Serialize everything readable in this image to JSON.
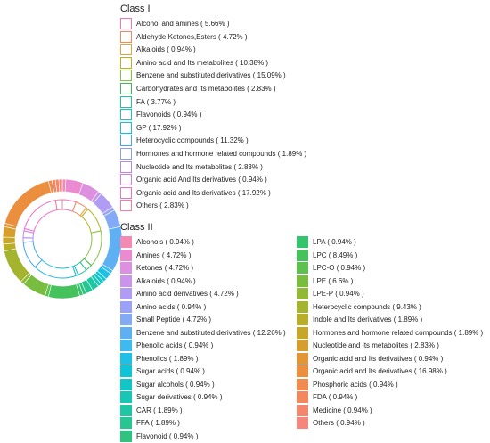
{
  "chart_data": {
    "type": "donut",
    "inner_ring": {
      "legend_title": "Class I",
      "legend_style": "outline",
      "categories": [
        {
          "label": "Alcohol and amines ( 5.66% )",
          "value": 5.66,
          "color": "#f472b6"
        },
        {
          "label": "Aldehyde,Ketones,Esters ( 4.72% )",
          "value": 4.72,
          "color": "#f08a5d"
        },
        {
          "label": "Alkaloids ( 0.94% )",
          "value": 0.94,
          "color": "#e8a23a"
        },
        {
          "label": "Amino acid and Its metabolites ( 10.38% )",
          "value": 10.38,
          "color": "#b7b31e"
        },
        {
          "label": "Benzene and substituted derivatives ( 15.09% )",
          "value": 15.09,
          "color": "#84c341"
        },
        {
          "label": "Carbohydrates and Its metabolites ( 2.83% )",
          "value": 2.83,
          "color": "#3cba5a"
        },
        {
          "label": "FA ( 3.77% )",
          "value": 3.77,
          "color": "#22c29a"
        },
        {
          "label": "Flavonoids ( 0.94% )",
          "value": 0.94,
          "color": "#1fc1c1"
        },
        {
          "label": "GP ( 17.92% )",
          "value": 17.92,
          "color": "#22b8d8"
        },
        {
          "label": "Heterocyclic compounds ( 11.32% )",
          "value": 11.32,
          "color": "#3fa8f0"
        },
        {
          "label": "Hormones and hormone related compounds ( 1.89% )",
          "value": 1.89,
          "color": "#8d9cf5"
        },
        {
          "label": "Nucleotide and Its metabolites ( 2.83% )",
          "value": 2.83,
          "color": "#b488f0"
        },
        {
          "label": "Organic acid And Its derivatives ( 0.94% )",
          "value": 0.94,
          "color": "#db7be6"
        },
        {
          "label": "Organic acid and Its derivatives ( 17.92% )",
          "value": 17.92,
          "color": "#f070c8"
        },
        {
          "label": "Others ( 2.83% )",
          "value": 2.83,
          "color": "#f77ca0"
        }
      ]
    },
    "outer_ring": {
      "legend_title": "Class II",
      "legend_style": "filled",
      "categories": [
        {
          "label": "Alcohols ( 0.94% )",
          "value": 0.94,
          "color": "#f38ab4"
        },
        {
          "label": "Amines ( 4.72% )",
          "value": 4.72,
          "color": "#eb8ad0"
        },
        {
          "label": "Ketones ( 4.72% )",
          "value": 4.72,
          "color": "#dd8fe0"
        },
        {
          "label": "Alkaloids ( 0.94% )",
          "value": 0.94,
          "color": "#c994ea"
        },
        {
          "label": "Amino acid derivatives ( 4.72% )",
          "value": 4.72,
          "color": "#b09cf2"
        },
        {
          "label": "Amino acids ( 0.94% )",
          "value": 0.94,
          "color": "#99a2f5"
        },
        {
          "label": "Small Peptide ( 4.72% )",
          "value": 4.72,
          "color": "#84a9f5"
        },
        {
          "label": "Benzene and substituted derivatives ( 12.26% )",
          "value": 12.26,
          "color": "#5fb0f2"
        },
        {
          "label": "Phenolic acids ( 0.94% )",
          "value": 0.94,
          "color": "#3dbaf0"
        },
        {
          "label": "Phenolics ( 1.89% )",
          "value": 1.89,
          "color": "#1fc0e6"
        },
        {
          "label": "Sugar acids ( 0.94% )",
          "value": 0.94,
          "color": "#10c4d8"
        },
        {
          "label": "Sugar alcohols ( 0.94% )",
          "value": 0.94,
          "color": "#12c6c8"
        },
        {
          "label": "Sugar derivatives ( 0.94% )",
          "value": 0.94,
          "color": "#18c6b6"
        },
        {
          "label": "CAR ( 1.89% )",
          "value": 1.89,
          "color": "#1ec6a4"
        },
        {
          "label": "FFA ( 1.89% )",
          "value": 1.89,
          "color": "#26c592"
        },
        {
          "label": "Flavonoid ( 0.94% )",
          "value": 0.94,
          "color": "#2ec480"
        },
        {
          "label": "LPA ( 0.94% )",
          "value": 0.94,
          "color": "#34c46e"
        },
        {
          "label": "LPC ( 8.49% )",
          "value": 8.49,
          "color": "#45c25c"
        },
        {
          "label": "LPC-O ( 0.94% )",
          "value": 0.94,
          "color": "#5ec04e"
        },
        {
          "label": "LPE ( 6.6% )",
          "value": 6.6,
          "color": "#78bd40"
        },
        {
          "label": "LPE-P ( 0.94% )",
          "value": 0.94,
          "color": "#90b936"
        },
        {
          "label": "Heterocyclic compounds ( 9.43% )",
          "value": 9.43,
          "color": "#a5b42e"
        },
        {
          "label": "Indole and Its derivatives ( 1.89% )",
          "value": 1.89,
          "color": "#b8ae2a"
        },
        {
          "label": "Hormones and hormone related compounds ( 1.89% )",
          "value": 1.89,
          "color": "#c8a62a"
        },
        {
          "label": "Nucleotide and Its metabolites ( 2.83% )",
          "value": 2.83,
          "color": "#d69e2e"
        },
        {
          "label": "Organic acid and  Its derivatives ( 0.94% )",
          "value": 0.94,
          "color": "#e29636"
        },
        {
          "label": "Organic acid and Its derivatives ( 16.98% )",
          "value": 16.98,
          "color": "#eb8e3e"
        },
        {
          "label": "Phosphoric acids ( 0.94% )",
          "value": 0.94,
          "color": "#f08a4e"
        },
        {
          "label": "FDA ( 0.94% )",
          "value": 0.94,
          "color": "#f2885e"
        },
        {
          "label": "Medicine ( 0.94% )",
          "value": 0.94,
          "color": "#f3876e"
        },
        {
          "label": "Others ( 0.94% )",
          "value": 0.94,
          "color": "#f4867e"
        }
      ]
    }
  }
}
